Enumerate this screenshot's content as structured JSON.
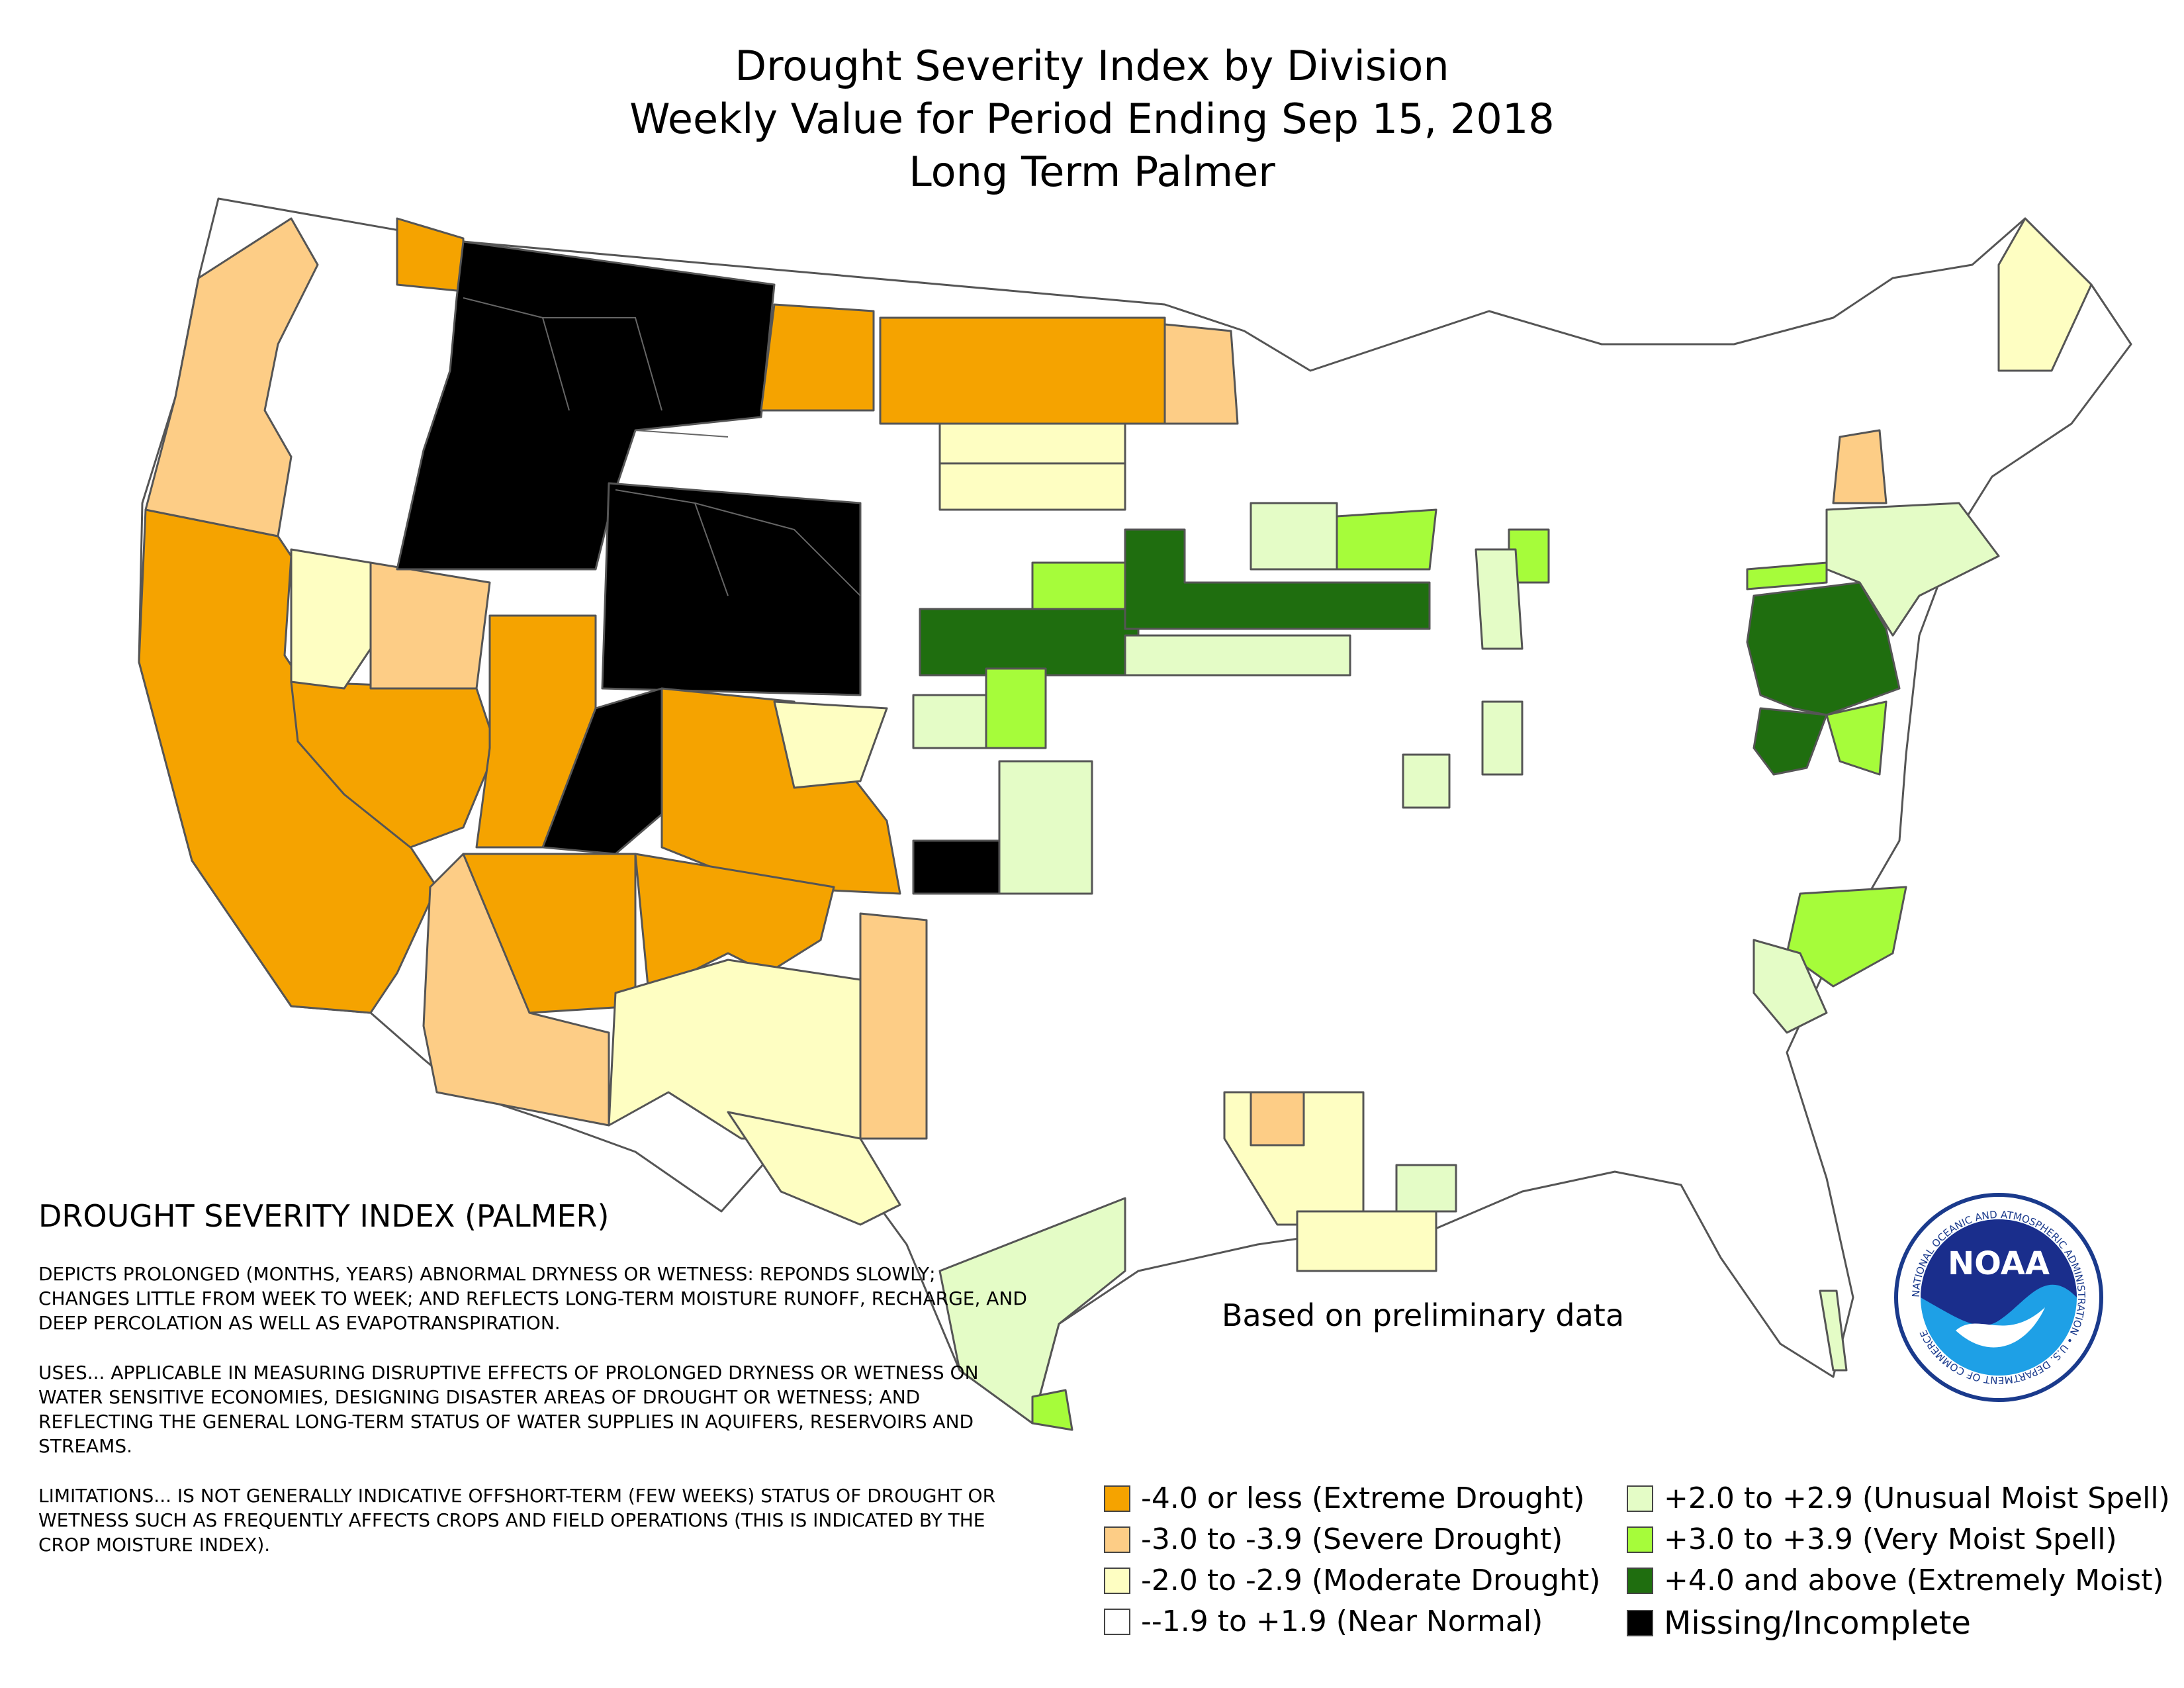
{
  "title": {
    "line1": "Drought Severity Index by Division",
    "line2": "Weekly Value for Period Ending Sep 15, 2018",
    "line3": "Long Term Palmer"
  },
  "description": {
    "heading": "DROUGHT SEVERITY INDEX (PALMER)",
    "paragraphs": [
      "DEPICTS PROLONGED (MONTHS, YEARS) ABNORMAL DRYNESS OR WETNESS: REPONDS SLOWLY; CHANGES LITTLE FROM WEEK TO WEEK; AND REFLECTS LONG-TERM MOISTURE RUNOFF, RECHARGE, AND DEEP PERCOLATION AS WELL AS EVAPOTRANSPIRATION.",
      "USES... APPLICABLE IN MEASURING DISRUPTIVE EFFECTS OF PROLONGED DRYNESS OR WETNESS ON WATER SENSITIVE ECONOMIES, DESIGNING DISASTER AREAS OF DROUGHT OR WETNESS; AND REFLECTING THE GENERAL LONG-TERM STATUS OF WATER SUPPLIES IN AQUIFERS, RESERVOIRS AND STREAMS.",
      "LIMITATIONS... IS NOT GENERALLY INDICATIVE OFFSHORT-TERM (FEW WEEKS) STATUS OF DROUGHT OR WETNESS SUCH AS FREQUENTLY AFFECTS CROPS AND FIELD OPERATIONS (THIS IS INDICATED BY THE CROP MOISTURE INDEX)."
    ]
  },
  "note": "Based on preliminary data",
  "logo": {
    "text": "NOAA",
    "ring_text": "NATIONAL OCEANIC AND ATMOSPHERIC ADMINISTRATION • U.S. DEPARTMENT OF COMMERCE"
  },
  "legend": [
    {
      "label": "-4.0 or less (Extreme Drought)",
      "color": "#f5a300"
    },
    {
      "label": "-3.0 to -3.9 (Severe Drought)",
      "color": "#fdcd86"
    },
    {
      "label": "-2.0 to -2.9 (Moderate Drought)",
      "color": "#fefec2"
    },
    {
      "label": "--1.9 to +1.9 (Near Normal)",
      "color": "#ffffff"
    },
    {
      "label": "+2.0 to +2.9 (Unusual Moist Spell)",
      "color": "#e4fcc6"
    },
    {
      "label": "+3.0 to +3.9 (Very Moist Spell)",
      "color": "#a6fc3a"
    },
    {
      "label": "+4.0 and above (Extremely Moist)",
      "color": "#1f6e0f"
    },
    {
      "label": "Missing/Incomplete",
      "color": "#000000"
    }
  ]
}
